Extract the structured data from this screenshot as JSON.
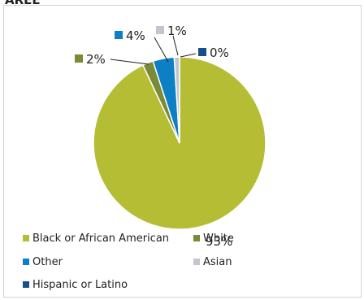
{
  "header": {
    "title": "AREE"
  },
  "chart_data": {
    "type": "pie",
    "title": "",
    "legend_position": "bottom",
    "slices": [
      {
        "name": "Black or African American",
        "value": 93,
        "label": "93%",
        "color": "#b5bd35"
      },
      {
        "name": "White",
        "value": 2,
        "label": "2%",
        "color": "#7a8a35"
      },
      {
        "name": "Other",
        "value": 4,
        "label": "4%",
        "color": "#0d7fc4"
      },
      {
        "name": "Asian",
        "value": 1,
        "label": "1%",
        "color": "#c4c6cf"
      },
      {
        "name": "Hispanic or Latino",
        "value": 0,
        "label": "0%",
        "color": "#164f8c"
      }
    ]
  }
}
